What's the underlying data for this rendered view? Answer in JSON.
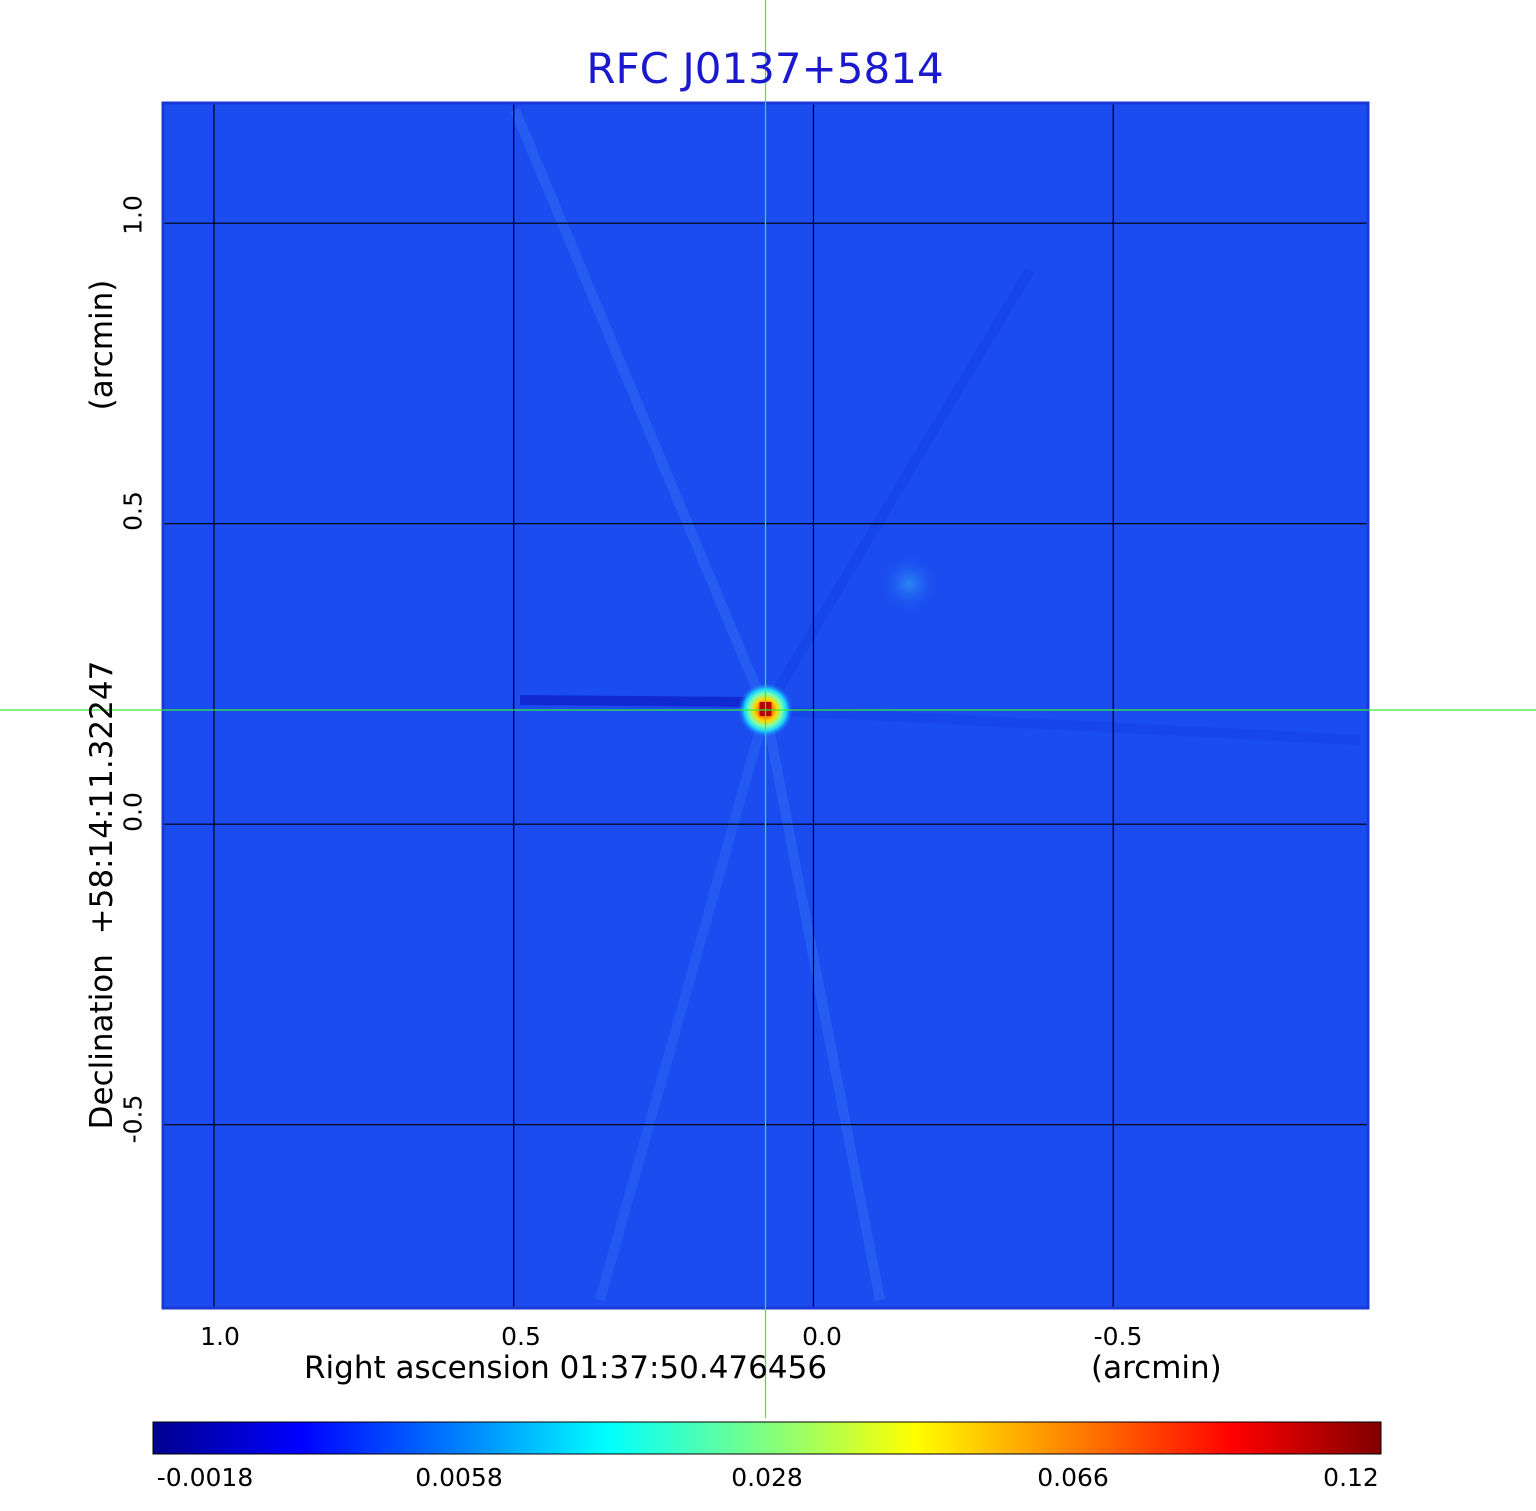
{
  "chart_data": {
    "type": "heatmap",
    "title": "RFC J0137+5814",
    "xlabel": "Right ascension  01:37:50.476456",
    "x_unit": "(arcmin)",
    "ylabel": "Declination  +58:14:11.32247",
    "y_unit": "(arcmin)",
    "x_ticks": [
      "1.0",
      "0.5",
      "0.0",
      "-0.5"
    ],
    "x_tick_values": [
      1.0,
      0.5,
      0.0,
      -0.5
    ],
    "xlim": [
      1.085,
      -0.925
    ],
    "y_ticks": [
      "1.0",
      "0.5",
      "0.0",
      "-0.5"
    ],
    "y_tick_values": [
      1.0,
      0.5,
      0.0,
      -0.5
    ],
    "ylim": [
      -0.805,
      1.2
    ],
    "grid": true,
    "crosshair": {
      "x": 0.08,
      "y": 0.19
    },
    "colormap": "jet",
    "colorbar_ticks": [
      "-0.0018",
      "0.0058",
      "0.028",
      "0.066",
      "0.12"
    ],
    "colorbar_tick_values": [
      -0.0018,
      0.0058,
      0.028,
      0.066,
      0.12
    ],
    "peak": {
      "x": 0.08,
      "y": 0.19,
      "value": 0.12
    },
    "secondary_feature": {
      "x": -0.16,
      "y": 0.4
    }
  },
  "colors": {
    "title": "#1a1acc",
    "crosshair": "#33ee33",
    "grid": "#000000",
    "background_map": "#1a4cf0"
  }
}
